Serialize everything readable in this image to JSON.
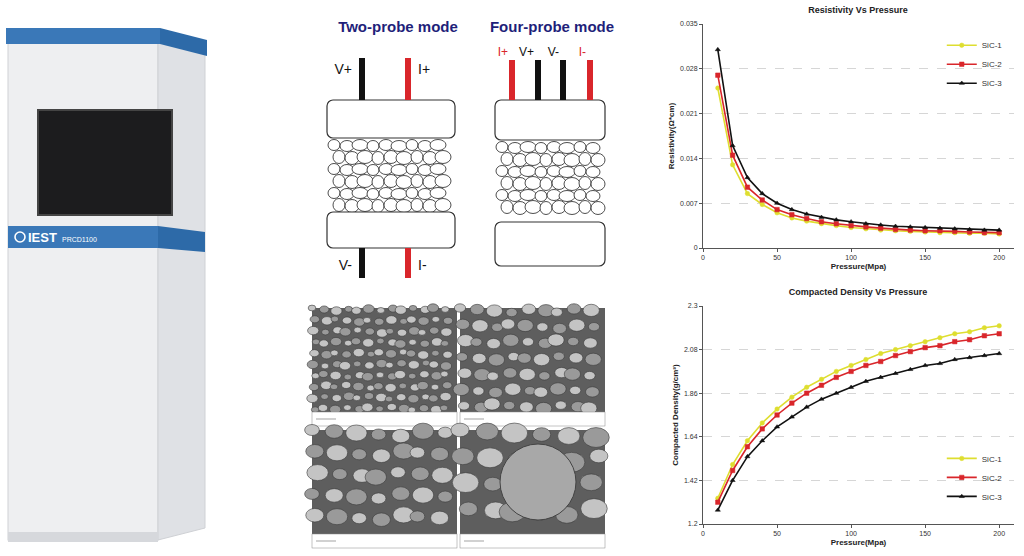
{
  "chart_data": [
    {
      "type": "line",
      "title": "Resistivity Vs Pressure",
      "xlabel": "Pressure(Mpa)",
      "ylabel": "Resistivity(Ω*cm)",
      "x": [
        10,
        20,
        30,
        40,
        50,
        60,
        70,
        80,
        90,
        100,
        110,
        120,
        130,
        140,
        150,
        160,
        170,
        180,
        190,
        200
      ],
      "series": [
        {
          "name": "SiC-1",
          "color": "#dede30",
          "marker": "circle",
          "values": [
            0.025,
            0.013,
            0.0085,
            0.0068,
            0.0055,
            0.0047,
            0.0042,
            0.0038,
            0.0035,
            0.0032,
            0.003,
            0.0028,
            0.0027,
            0.0026,
            0.0025,
            0.0024,
            0.0024,
            0.0023,
            0.0023,
            0.0022
          ]
        },
        {
          "name": "SiC-2",
          "color": "#d9262b",
          "marker": "square",
          "values": [
            0.027,
            0.0145,
            0.0095,
            0.0075,
            0.006,
            0.0052,
            0.0046,
            0.0041,
            0.0038,
            0.0035,
            0.0033,
            0.0031,
            0.0029,
            0.0028,
            0.0027,
            0.0027,
            0.0026,
            0.0025,
            0.0024,
            0.0024
          ]
        },
        {
          "name": "SiC-3",
          "color": "#111111",
          "marker": "triangle-up",
          "values": [
            0.031,
            0.016,
            0.011,
            0.0085,
            0.007,
            0.006,
            0.0053,
            0.0048,
            0.0044,
            0.0041,
            0.0038,
            0.0036,
            0.0034,
            0.0033,
            0.0032,
            0.0031,
            0.003,
            0.0029,
            0.0028,
            0.0028
          ]
        }
      ],
      "xlim": [
        0,
        210
      ],
      "xticks": [
        0,
        50,
        100,
        150,
        200
      ],
      "ylim": [
        0,
        0.035
      ],
      "yticks": [
        0,
        0.007,
        0.014,
        0.021,
        0.028,
        0.035
      ],
      "grid": true,
      "legend": "upper right"
    },
    {
      "type": "line",
      "title": "Compacted Density Vs Pressure",
      "xlabel": "Pressure(Mpa)",
      "ylabel": "Compacted Density(g/cm³)",
      "x": [
        10,
        20,
        30,
        40,
        50,
        60,
        70,
        80,
        90,
        100,
        110,
        120,
        130,
        140,
        150,
        160,
        170,
        180,
        190,
        200
      ],
      "series": [
        {
          "name": "SiC-1",
          "color": "#dede30",
          "marker": "circle",
          "values": [
            1.33,
            1.5,
            1.62,
            1.71,
            1.78,
            1.84,
            1.89,
            1.93,
            1.97,
            2.0,
            2.03,
            2.06,
            2.08,
            2.1,
            2.12,
            2.14,
            2.16,
            2.17,
            2.19,
            2.2
          ]
        },
        {
          "name": "SiC-2",
          "color": "#d9262b",
          "marker": "square",
          "values": [
            1.31,
            1.47,
            1.59,
            1.68,
            1.75,
            1.81,
            1.86,
            1.9,
            1.94,
            1.97,
            2.0,
            2.02,
            2.05,
            2.07,
            2.09,
            2.1,
            2.12,
            2.13,
            2.15,
            2.16
          ]
        },
        {
          "name": "SiC-3",
          "color": "#111111",
          "marker": "triangle-up",
          "values": [
            1.27,
            1.42,
            1.54,
            1.62,
            1.69,
            1.74,
            1.79,
            1.83,
            1.86,
            1.89,
            1.92,
            1.94,
            1.96,
            1.98,
            2.0,
            2.01,
            2.03,
            2.04,
            2.05,
            2.06
          ]
        }
      ],
      "xlim": [
        0,
        210
      ],
      "xticks": [
        0,
        50,
        100,
        150,
        200
      ],
      "ylim": [
        1.2,
        2.3
      ],
      "yticks": [
        1.2,
        1.42,
        1.64,
        1.86,
        2.08,
        2.3
      ],
      "grid": true,
      "legend": "lower right"
    }
  ],
  "diagram": {
    "panels": [
      {
        "title": "Two-probe mode",
        "top_labels": [
          "V+",
          "I+"
        ],
        "bottom_labels": [
          "V-",
          "I-"
        ]
      },
      {
        "title": "Four-probe mode",
        "top_labels": [
          "I+",
          "V+",
          "V-",
          "I-"
        ],
        "bottom_labels": []
      }
    ]
  },
  "device": {
    "brand": "IEST",
    "model": "PRCD1100"
  }
}
